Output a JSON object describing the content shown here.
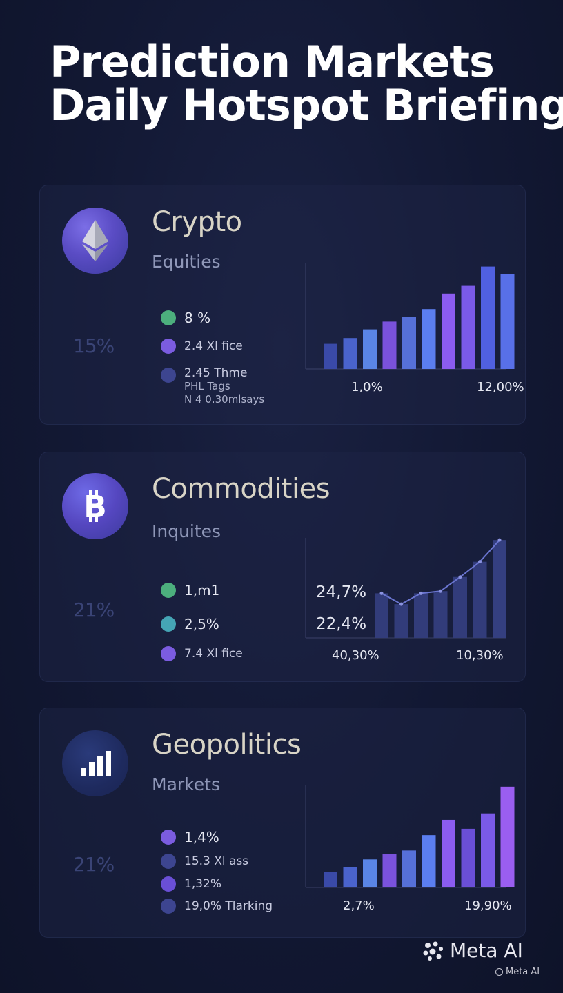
{
  "title": {
    "line1": "Prediction Markets",
    "line2": "Daily Hotspot Briefing"
  },
  "colors": {
    "background": "#121833",
    "bar_blue": "#5b7ef0",
    "bar_purple": "#8b5cf0",
    "bar_navy": "#3a4aa8"
  },
  "cards": [
    {
      "icon": "ethereum-icon",
      "title": "Crypto",
      "subtitle": "Equities",
      "big_percent": "15%",
      "legend": [
        {
          "color": "#4caf7d",
          "text": "8 %"
        },
        {
          "color": "#7b5ce0",
          "text": "2.4 Xl fice"
        },
        {
          "color": "#3d4590",
          "lines": [
            "2.45 Thme",
            "PHL Tags",
            "N 4 0.30mlsays"
          ]
        }
      ]
    },
    {
      "icon": "bitcoin-icon",
      "title": "Commodities",
      "subtitle": "Inquites",
      "big_percent": "21%",
      "legend": [
        {
          "color": "#4caf7d",
          "text": "1,m1"
        },
        {
          "color": "#45a5b5",
          "text": "2,5%"
        },
        {
          "color": "#7b5ce0",
          "text": "7.4 Xl fice"
        }
      ]
    },
    {
      "icon": "bar-chart-icon",
      "title": "Geopolitics",
      "subtitle": "Markets",
      "big_percent": "21%",
      "legend": [
        {
          "color": "#7b5ce0",
          "text": "1,4%"
        },
        {
          "color": "#3d4590",
          "text": "15.3 Xl ass"
        },
        {
          "color": "#6a4fd6",
          "text": "1,32%"
        },
        {
          "color": "#3d4590",
          "text": "19,0% Tlarking"
        }
      ]
    }
  ],
  "chart_data": [
    {
      "type": "bar",
      "x_labels": [
        "1,0%",
        "12,00%"
      ],
      "values": [
        2.6,
        3.2,
        4.1,
        4.9,
        5.4,
        6.2,
        7.8,
        8.6,
        10.6,
        9.8
      ],
      "bar_colors": [
        "#3a4aa8",
        "#4a63cc",
        "#5a85e6",
        "#7a52dc",
        "#5670d8",
        "#5b7ef0",
        "#8b5cf0",
        "#7a5ae8",
        "#5060e0",
        "#5870e8"
      ],
      "ylim": [
        0,
        11
      ]
    },
    {
      "type": "bar",
      "x_labels": [
        "40,30%",
        "10,30%"
      ],
      "y_labels": [
        "24,7%",
        "22,4%"
      ],
      "values": [
        4.1,
        3.1,
        4.1,
        4.3,
        5.6,
        7.0,
        9.0
      ],
      "bar_colors": [
        "#323c7a",
        "#323c7a",
        "#323c7a",
        "#323c7a",
        "#323c7a",
        "#323c7a",
        "#343f80"
      ],
      "line_color": "#6a75d0",
      "ylim": [
        0,
        9.2
      ]
    },
    {
      "type": "bar",
      "x_labels": [
        "2,7%",
        "19,90%"
      ],
      "values": [
        1.2,
        1.6,
        2.2,
        2.6,
        2.9,
        4.1,
        5.3,
        4.6,
        5.8,
        7.9
      ],
      "bar_colors": [
        "#3a4aa8",
        "#4a63cc",
        "#5a85e6",
        "#7a52dc",
        "#5670d8",
        "#5b7ef0",
        "#8b5cf0",
        "#6a4fd6",
        "#7a5ae8",
        "#9a5ef0"
      ],
      "ylim": [
        0,
        8
      ]
    }
  ]
}
